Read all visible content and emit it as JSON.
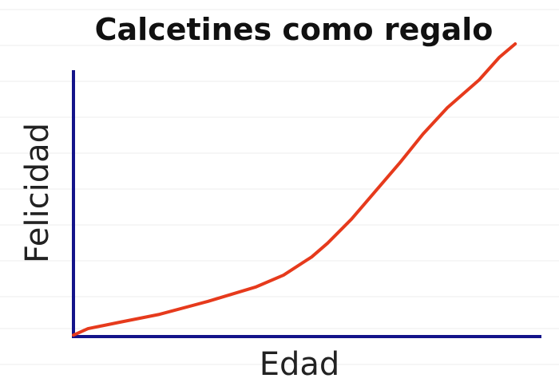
{
  "chart_data": {
    "type": "line",
    "title": "Calcetines como regalo",
    "x_label": "Edad",
    "y_label": "Felicidad",
    "x": [
      0,
      3.1,
      9.9,
      18.4,
      28.7,
      38.9,
      44.9,
      50.9,
      54.3,
      59.4,
      64.5,
      69.6,
      74.7,
      79.9,
      86.7,
      91.0,
      94.4
    ],
    "series": [
      {
        "color": "#e63a1c",
        "values": [
          0.5,
          2.7,
          4.9,
          7.6,
          12.0,
          16.9,
          21.0,
          27.2,
          31.9,
          40.1,
          49.6,
          59.1,
          69.2,
          78.2,
          87.7,
          95.4,
          100
        ]
      }
    ],
    "xlim": [
      0,
      100
    ],
    "ylim": [
      0,
      100
    ],
    "axis_color": "#14148a"
  }
}
